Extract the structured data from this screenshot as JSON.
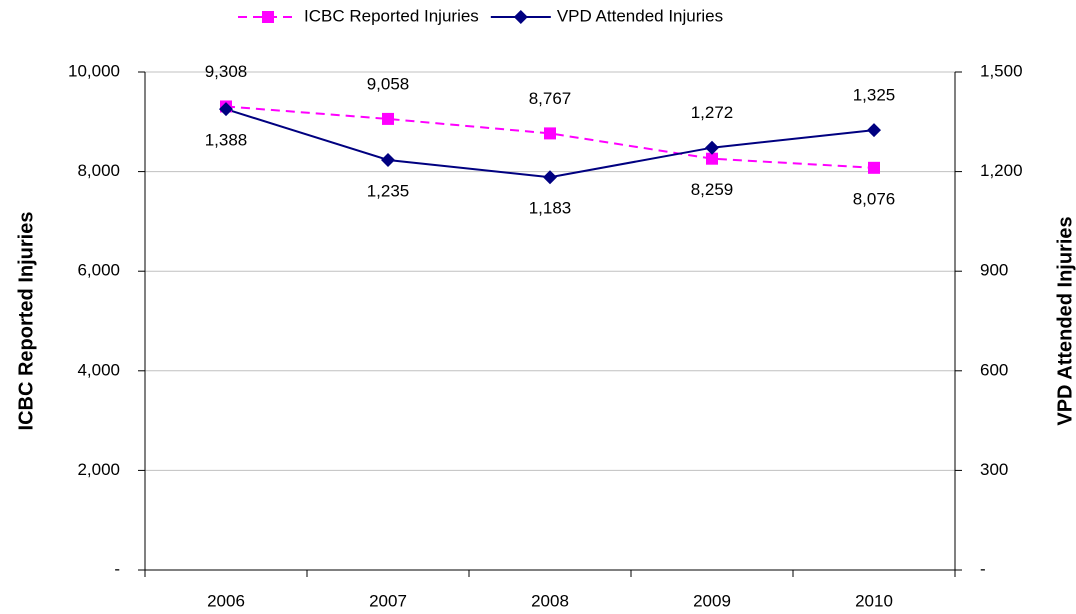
{
  "chart_data": {
    "type": "line",
    "y_label": "ICBC Reported Injuries",
    "y2_label": "VPD Attended Injuries",
    "categories": [
      "2006",
      "2007",
      "2008",
      "2009",
      "2010"
    ],
    "series": [
      {
        "name": "ICBC Reported Injuries",
        "color": "#ff00ff",
        "line_style": "dashed",
        "marker": "square",
        "values": [
          9308,
          9058,
          8767,
          8259,
          8076
        ],
        "value_labels": [
          "9,308",
          "9,058",
          "8,767",
          "8,259",
          "8,076"
        ]
      },
      {
        "name": "VPD Attended Injuries",
        "color": "#000080",
        "line_style": "solid",
        "marker": "diamond",
        "axis": "y2",
        "values": [
          1388,
          1235,
          1183,
          1272,
          1325
        ],
        "value_labels": [
          "1,388",
          "1,235",
          "1,183",
          "1,272",
          "1,325"
        ]
      }
    ],
    "ylim": [
      0,
      10000
    ],
    "yticks": [
      {
        "value": 0,
        "label": "-"
      },
      {
        "value": 2000,
        "label": "2,000"
      },
      {
        "value": 4000,
        "label": "4,000"
      },
      {
        "value": 6000,
        "label": "6,000"
      },
      {
        "value": 8000,
        "label": "8,000"
      },
      {
        "value": 10000,
        "label": "10,000"
      }
    ],
    "y2lim": [
      0,
      1500
    ],
    "y2ticks": [
      {
        "value": 0,
        "label": "-"
      },
      300,
      600,
      900,
      {
        "value": 1200,
        "label": "1,200"
      },
      {
        "value": 1500,
        "label": "1,500"
      }
    ],
    "grid": true,
    "legend": "top"
  }
}
